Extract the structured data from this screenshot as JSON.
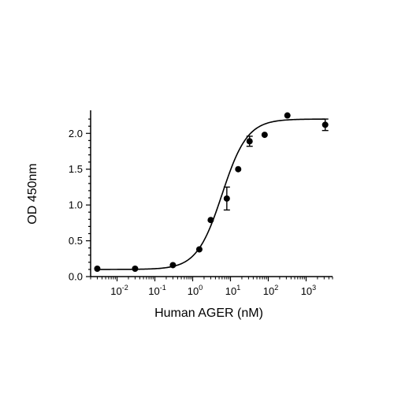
{
  "chart_data": {
    "type": "scatter",
    "title": "",
    "xlabel": "Human AGER (nM)",
    "ylabel": "OD 450nm",
    "xscale": "log",
    "xlim": [
      0.002,
      5000
    ],
    "ylim": [
      0,
      2.3
    ],
    "grid": false,
    "legend": "none",
    "x_ticks": [
      {
        "value": 0.01,
        "base": "10",
        "exp": "-2"
      },
      {
        "value": 0.1,
        "base": "10",
        "exp": "-1"
      },
      {
        "value": 1,
        "base": "10",
        "exp": "0"
      },
      {
        "value": 10,
        "base": "10",
        "exp": "1"
      },
      {
        "value": 100,
        "base": "10",
        "exp": "2"
      },
      {
        "value": 1000,
        "base": "10",
        "exp": "3"
      }
    ],
    "y_ticks": [
      {
        "value": 0.0,
        "label": "0.0"
      },
      {
        "value": 0.5,
        "label": "0.5"
      },
      {
        "value": 1.0,
        "label": "1.0"
      },
      {
        "value": 1.5,
        "label": "1.5"
      },
      {
        "value": 2.0,
        "label": "2.0"
      }
    ],
    "points": [
      {
        "x": 0.003,
        "y": 0.11
      },
      {
        "x": 0.03,
        "y": 0.11
      },
      {
        "x": 0.3,
        "y": 0.16
      },
      {
        "x": 1.5,
        "y": 0.38
      },
      {
        "x": 3,
        "y": 0.79
      },
      {
        "x": 8,
        "y": 1.09,
        "err": 0.16
      },
      {
        "x": 16,
        "y": 1.5
      },
      {
        "x": 32,
        "y": 1.89,
        "err": 0.07
      },
      {
        "x": 80,
        "y": 1.98
      },
      {
        "x": 320,
        "y": 2.25
      },
      {
        "x": 3200,
        "y": 2.12,
        "err": 0.08
      }
    ],
    "fit": {
      "bottom": 0.1,
      "top": 2.2,
      "ec50": 6,
      "hill": 1.3
    },
    "colors": {
      "axis": "#000000",
      "points": "#000000",
      "curve": "#000000"
    }
  }
}
